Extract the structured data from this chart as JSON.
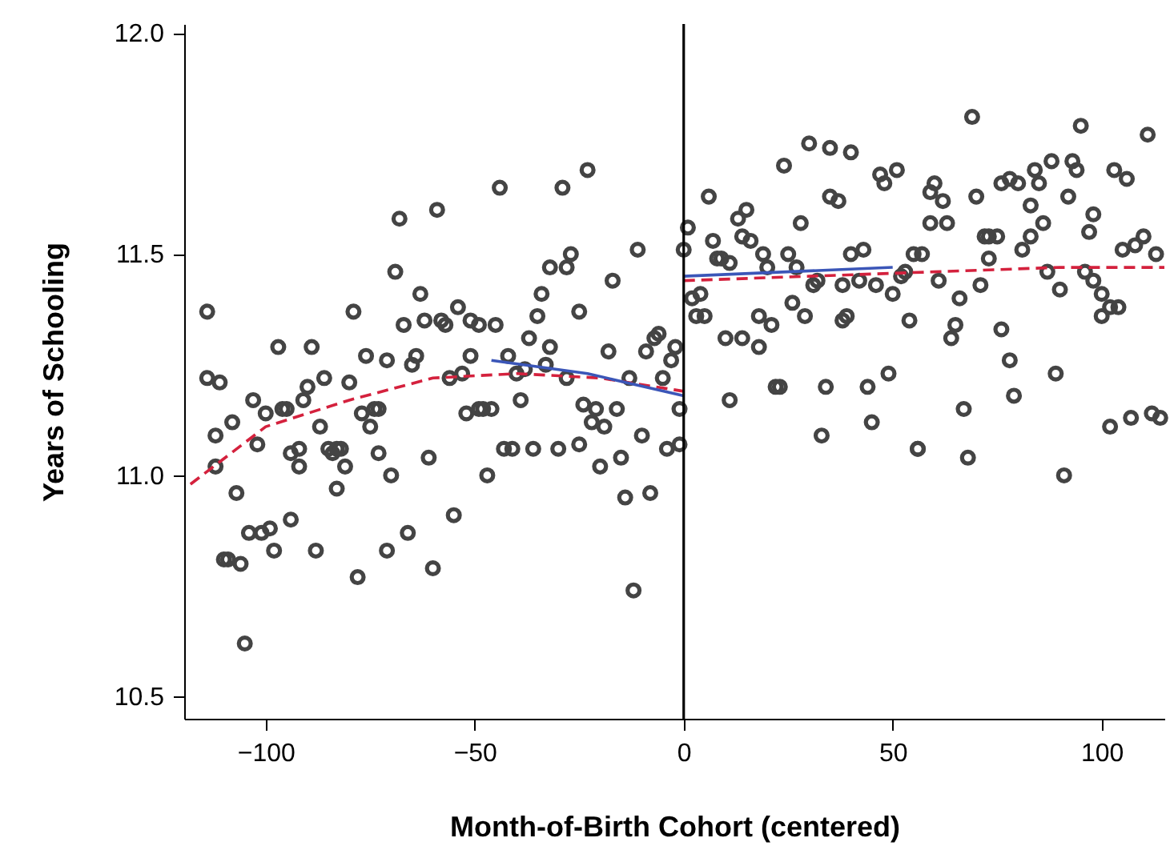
{
  "chart_data": {
    "type": "scatter",
    "xlabel": "Month-of-Birth Cohort (centered)",
    "ylabel": "Years of Schooling",
    "xlim": [
      -119.5,
      115
    ],
    "ylim": [
      10.45,
      12.02
    ],
    "xticks": [
      -100,
      -50,
      0,
      50,
      100
    ],
    "yticks": [
      10.5,
      {
        "value": 11,
        "label": "11.0"
      },
      11.5,
      {
        "value": 12,
        "label": "12.0"
      }
    ],
    "marker": "circle",
    "grid": false,
    "ref_lines": [
      {
        "axis": "x",
        "value": 0,
        "color": "#000000"
      }
    ],
    "series": [
      {
        "color": "#444444",
        "x": [
          -114,
          -114,
          -112,
          -112,
          -111,
          -110,
          -109,
          -108,
          -107,
          -106,
          -105,
          -104,
          -103,
          -102,
          -101,
          -100,
          -99,
          -98,
          -97,
          -96,
          -95,
          -94,
          -94,
          -92,
          -92,
          -91,
          -90,
          -89,
          -88,
          -87,
          -86,
          -85,
          -84,
          -83,
          -83,
          -82,
          -81,
          -80,
          -79,
          -78,
          -77,
          -76,
          -75,
          -74,
          -73,
          -73,
          -71,
          -71,
          -70,
          -69,
          -68,
          -67,
          -66,
          -65,
          -64,
          -63,
          -62,
          -61,
          -60,
          -59,
          -58,
          -57,
          -56,
          -55,
          -54,
          -53,
          -52,
          -51,
          -51,
          -49,
          -49,
          -48,
          -47,
          -46,
          -45,
          -44,
          -43,
          -42,
          -41,
          -40,
          -39,
          -38,
          -37,
          -36,
          -35,
          -34,
          -33,
          -32,
          -32,
          -30,
          -29,
          -28,
          -28,
          -27,
          -25,
          -25,
          -24,
          -23,
          -22,
          -21,
          -20,
          -19,
          -18,
          -17,
          -16,
          -15,
          -14,
          -13,
          -12,
          -11,
          -10,
          -9,
          -8,
          -7,
          -6,
          -5,
          -4,
          -3,
          -2,
          -1,
          -1,
          0,
          1,
          2,
          3,
          4,
          5,
          6,
          7,
          8,
          9,
          10,
          11,
          11,
          13,
          14,
          14,
          15,
          16,
          18,
          18,
          19,
          20,
          21,
          22,
          23,
          24,
          25,
          26,
          27,
          28,
          29,
          30,
          31,
          32,
          33,
          34,
          35,
          35,
          37,
          38,
          38,
          39,
          40,
          40,
          42,
          43,
          44,
          45,
          46,
          47,
          48,
          49,
          50,
          51,
          52,
          53,
          54,
          55,
          56,
          56,
          57,
          59,
          59,
          60,
          61,
          62,
          63,
          64,
          65,
          66,
          67,
          68,
          69,
          70,
          71,
          72,
          73,
          73,
          75,
          76,
          76,
          78,
          78,
          79,
          80,
          81,
          83,
          83,
          84,
          85,
          86,
          87,
          88,
          89,
          90,
          91,
          92,
          93,
          94,
          95,
          96,
          97,
          98,
          98,
          100,
          100,
          102,
          102,
          103,
          104,
          105,
          106,
          107,
          108,
          110,
          111,
          112,
          113,
          114
        ],
        "values": [
          11.22,
          11.37,
          11.02,
          11.09,
          11.21,
          10.81,
          10.81,
          11.12,
          10.96,
          10.8,
          10.62,
          10.87,
          11.17,
          11.07,
          10.87,
          11.14,
          10.88,
          10.83,
          11.29,
          11.15,
          11.15,
          10.9,
          11.05,
          11.06,
          11.02,
          11.17,
          11.2,
          11.29,
          10.83,
          11.11,
          11.22,
          11.06,
          11.05,
          11.06,
          10.97,
          11.06,
          11.02,
          11.21,
          11.37,
          10.77,
          11.14,
          11.27,
          11.11,
          11.15,
          11.05,
          11.15,
          11.26,
          10.83,
          11.0,
          11.46,
          11.58,
          11.34,
          10.87,
          11.25,
          11.27,
          11.41,
          11.35,
          11.04,
          10.79,
          11.6,
          11.35,
          11.34,
          11.22,
          10.91,
          11.38,
          11.23,
          11.14,
          11.27,
          11.35,
          11.15,
          11.34,
          11.15,
          11.0,
          11.15,
          11.34,
          11.65,
          11.06,
          11.27,
          11.06,
          11.23,
          11.17,
          11.24,
          11.31,
          11.06,
          11.36,
          11.41,
          11.25,
          11.29,
          11.47,
          11.06,
          11.65,
          11.22,
          11.47,
          11.5,
          11.37,
          11.07,
          11.16,
          11.69,
          11.12,
          11.15,
          11.02,
          11.11,
          11.28,
          11.44,
          11.15,
          11.04,
          10.95,
          11.22,
          10.74,
          11.51,
          11.09,
          11.28,
          10.96,
          11.31,
          11.32,
          11.22,
          11.06,
          11.26,
          11.29,
          11.15,
          11.07,
          11.51,
          11.56,
          11.4,
          11.36,
          11.41,
          11.36,
          11.63,
          11.53,
          11.49,
          11.49,
          11.31,
          11.17,
          11.48,
          11.58,
          11.54,
          11.31,
          11.6,
          11.53,
          11.29,
          11.36,
          11.5,
          11.47,
          11.34,
          11.2,
          11.2,
          11.7,
          11.5,
          11.39,
          11.47,
          11.57,
          11.36,
          11.75,
          11.43,
          11.44,
          11.09,
          11.2,
          11.63,
          11.74,
          11.62,
          11.35,
          11.43,
          11.36,
          11.5,
          11.73,
          11.44,
          11.51,
          11.2,
          11.12,
          11.43,
          11.68,
          11.66,
          11.23,
          11.41,
          11.69,
          11.45,
          11.46,
          11.35,
          11.5,
          11.06,
          11.06,
          11.5,
          11.57,
          11.64,
          11.66,
          11.44,
          11.62,
          11.57,
          11.31,
          11.34,
          11.4,
          11.15,
          11.04,
          11.81,
          11.63,
          11.43,
          11.54,
          11.49,
          11.54,
          11.54,
          11.66,
          11.33,
          11.67,
          11.26,
          11.18,
          11.66,
          11.51,
          11.61,
          11.54,
          11.69,
          11.66,
          11.57,
          11.46,
          11.71,
          11.23,
          11.42,
          11.0,
          11.63,
          11.71,
          11.69,
          11.79,
          11.46,
          11.55,
          11.44,
          11.59,
          11.41,
          11.36,
          11.38,
          11.11,
          11.69,
          11.38,
          11.51,
          11.67,
          11.13,
          11.52,
          11.54,
          11.77,
          11.14,
          11.5,
          11.13
        ]
      },
      {
        "type": "line",
        "marker": "none",
        "color": "#d4213d",
        "line_style": "dashed",
        "x": [
          -118,
          -100,
          -80,
          -60,
          -40,
          -20,
          0
        ],
        "values": [
          10.98,
          11.11,
          11.17,
          11.22,
          11.23,
          11.22,
          11.19
        ]
      },
      {
        "type": "line",
        "marker": "none",
        "color": "#d4213d",
        "line_style": "dashed",
        "x": [
          0,
          30,
          60,
          90,
          115
        ],
        "values": [
          11.44,
          11.45,
          11.46,
          11.47,
          11.47
        ]
      },
      {
        "type": "line",
        "marker": "none",
        "color": "#3b56b8",
        "line_style": "solid",
        "x": [
          -46,
          -23,
          0
        ],
        "values": [
          11.26,
          11.23,
          11.18
        ]
      },
      {
        "type": "line",
        "marker": "none",
        "color": "#3b56b8",
        "line_style": "solid",
        "x": [
          0,
          50
        ],
        "values": [
          11.45,
          11.47
        ]
      }
    ]
  }
}
